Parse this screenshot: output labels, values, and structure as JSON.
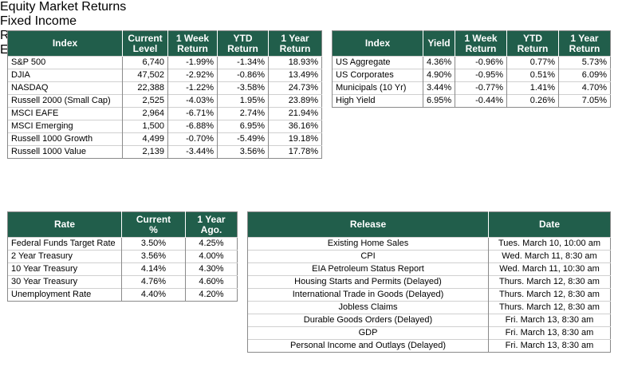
{
  "equity": {
    "title": "Equity Market Returns",
    "header": [
      "Index",
      "Current\nLevel",
      "1 Week\nReturn",
      "YTD\nReturn",
      "1 Year\nReturn"
    ],
    "rows": [
      [
        "S&P 500",
        "6,740",
        "-1.99%",
        "-1.34%",
        "18.93%"
      ],
      [
        "DJIA",
        "47,502",
        "-2.92%",
        "-0.86%",
        "13.49%"
      ],
      [
        "NASDAQ",
        "22,388",
        "-1.22%",
        "-3.58%",
        "24.73%"
      ],
      [
        "Russell 2000 (Small Cap)",
        "2,525",
        "-4.03%",
        "1.95%",
        "23.89%"
      ],
      [
        "MSCI EAFE",
        "2,964",
        "-6.71%",
        "2.74%",
        "21.94%"
      ],
      [
        "MSCI Emerging",
        "1,500",
        "-6.88%",
        "6.95%",
        "36.16%"
      ],
      [
        "Russell 1000 Growth",
        "4,499",
        "-0.70%",
        "-5.49%",
        "19.18%"
      ],
      [
        "Russell 1000 Value",
        "2,139",
        "-3.44%",
        "3.56%",
        "17.78%"
      ]
    ]
  },
  "fixed_income": {
    "title": "Fixed Income",
    "header": [
      "Index",
      "Yield",
      "1 Week\nReturn",
      "YTD\nReturn",
      "1 Year\nReturn"
    ],
    "rows": [
      [
        "US Aggregate",
        "4.36%",
        "-0.96%",
        "0.77%",
        "5.73%"
      ],
      [
        "US Corporates",
        "4.90%",
        "-0.95%",
        "0.51%",
        "6.09%"
      ],
      [
        "Municipals (10 Yr)",
        "3.44%",
        "-0.77%",
        "1.41%",
        "4.70%"
      ],
      [
        "High Yield",
        "6.95%",
        "-0.44%",
        "0.26%",
        "7.05%"
      ]
    ]
  },
  "rates": {
    "title": "Rates",
    "header": [
      "Rate",
      "Current\n%",
      "1 Year\nAgo."
    ],
    "rows": [
      [
        "Federal Funds Target Rate",
        "3.50%",
        "4.25%"
      ],
      [
        "2 Year Treasury",
        "3.56%",
        "4.00%"
      ],
      [
        "10 Year Treasury",
        "4.14%",
        "4.30%"
      ],
      [
        "30 Year Treasury",
        "4.76%",
        "4.60%"
      ],
      [
        "Unemployment Rate",
        "4.40%",
        "4.20%"
      ]
    ]
  },
  "economic_calendar": {
    "title": "Economic Data Calendar",
    "header": [
      "Release",
      "Date"
    ],
    "rows": [
      [
        "Existing Home Sales",
        "Tues. March 10, 10:00 am"
      ],
      [
        "CPI",
        "Wed. March 11, 8:30 am"
      ],
      [
        "EIA Petroleum Status Report",
        "Wed. March 11, 10:30 am"
      ],
      [
        "Housing Starts and Permits (Delayed)",
        "Thurs. March 12, 8:30 am"
      ],
      [
        "International Trade in Goods (Delayed)",
        "Thurs. March 12, 8:30 am"
      ],
      [
        "Jobless Claims",
        "Thurs. March 12, 8:30 am"
      ],
      [
        "Durable Goods Orders (Delayed)",
        "Fri. March 13, 8:30 am"
      ],
      [
        "GDP",
        "Fri. March 13, 8:30 am"
      ],
      [
        "Personal Income and Outlays (Delayed)",
        "Fri. March 13, 8:30 am"
      ]
    ]
  }
}
